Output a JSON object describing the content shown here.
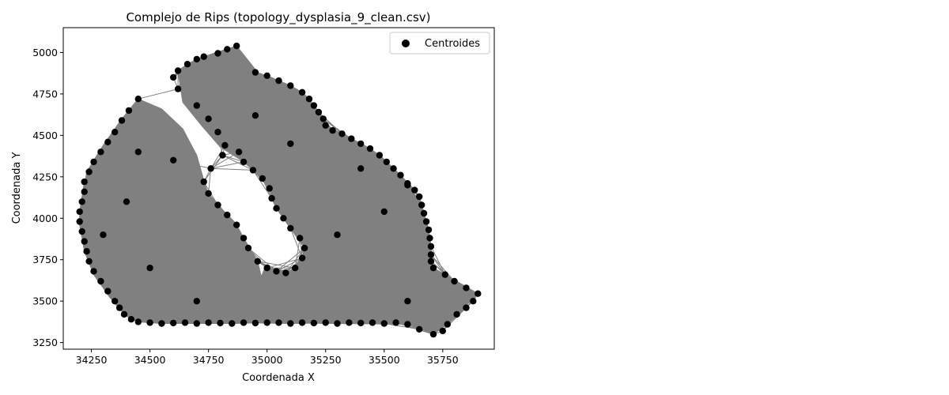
{
  "chart_data": {
    "type": "scatter",
    "title": "Complejo de Rips (topology_dysplasia_9_clean.csv)",
    "xlabel": "Coordenada X",
    "ylabel": "Coordenada Y",
    "xlim": [
      34130,
      35970
    ],
    "ylim": [
      3210,
      5150
    ],
    "xticks": [
      34250,
      34500,
      34750,
      35000,
      35250,
      35500,
      35750
    ],
    "yticks": [
      3250,
      3500,
      3750,
      4000,
      4250,
      4500,
      4750,
      5000
    ],
    "grid": false,
    "legend": {
      "position": "top-right",
      "entries": [
        "Centroides"
      ]
    },
    "series": [
      {
        "name": "Centroides",
        "marker_color": "#000000",
        "edge_color": "#808080",
        "points": [
          [
            34870,
            5040
          ],
          [
            34830,
            5020
          ],
          [
            34790,
            4995
          ],
          [
            34730,
            4975
          ],
          [
            34700,
            4960
          ],
          [
            34660,
            4930
          ],
          [
            34620,
            4890
          ],
          [
            34600,
            4850
          ],
          [
            34950,
            4880
          ],
          [
            35000,
            4860
          ],
          [
            35050,
            4830
          ],
          [
            35100,
            4800
          ],
          [
            35150,
            4760
          ],
          [
            35180,
            4720
          ],
          [
            35200,
            4680
          ],
          [
            35220,
            4640
          ],
          [
            35240,
            4600
          ],
          [
            35250,
            4560
          ],
          [
            35280,
            4530
          ],
          [
            35320,
            4510
          ],
          [
            35360,
            4480
          ],
          [
            35400,
            4450
          ],
          [
            35440,
            4420
          ],
          [
            35480,
            4380
          ],
          [
            35510,
            4340
          ],
          [
            35540,
            4300
          ],
          [
            35570,
            4260
          ],
          [
            35600,
            4210
          ],
          [
            35630,
            4170
          ],
          [
            35650,
            4130
          ],
          [
            35660,
            4080
          ],
          [
            35670,
            4030
          ],
          [
            35680,
            3980
          ],
          [
            35690,
            3930
          ],
          [
            35695,
            3880
          ],
          [
            35700,
            3830
          ],
          [
            35700,
            3780
          ],
          [
            35700,
            3740
          ],
          [
            35710,
            3700
          ],
          [
            35760,
            3660
          ],
          [
            35800,
            3620
          ],
          [
            35850,
            3580
          ],
          [
            35900,
            3545
          ],
          [
            35880,
            3500
          ],
          [
            35850,
            3460
          ],
          [
            35810,
            3420
          ],
          [
            35770,
            3360
          ],
          [
            35750,
            3320
          ],
          [
            35710,
            3300
          ],
          [
            35650,
            3330
          ],
          [
            35600,
            3360
          ],
          [
            35550,
            3370
          ],
          [
            35500,
            3365
          ],
          [
            35450,
            3370
          ],
          [
            35400,
            3368
          ],
          [
            35350,
            3370
          ],
          [
            35300,
            3365
          ],
          [
            35250,
            3370
          ],
          [
            35200,
            3368
          ],
          [
            35150,
            3370
          ],
          [
            35100,
            3365
          ],
          [
            35050,
            3370
          ],
          [
            35000,
            3370
          ],
          [
            34950,
            3368
          ],
          [
            34900,
            3370
          ],
          [
            34850,
            3365
          ],
          [
            34800,
            3368
          ],
          [
            34750,
            3370
          ],
          [
            34700,
            3365
          ],
          [
            34650,
            3370
          ],
          [
            34600,
            3368
          ],
          [
            34550,
            3365
          ],
          [
            34500,
            3370
          ],
          [
            34450,
            3375
          ],
          [
            34420,
            3390
          ],
          [
            34390,
            3420
          ],
          [
            34370,
            3460
          ],
          [
            34350,
            3500
          ],
          [
            34320,
            3560
          ],
          [
            34290,
            3620
          ],
          [
            34260,
            3680
          ],
          [
            34240,
            3740
          ],
          [
            34230,
            3800
          ],
          [
            34220,
            3860
          ],
          [
            34210,
            3920
          ],
          [
            34200,
            3980
          ],
          [
            34200,
            4040
          ],
          [
            34210,
            4100
          ],
          [
            34220,
            4160
          ],
          [
            34220,
            4220
          ],
          [
            34240,
            4280
          ],
          [
            34260,
            4340
          ],
          [
            34290,
            4400
          ],
          [
            34320,
            4460
          ],
          [
            34350,
            4520
          ],
          [
            34380,
            4590
          ],
          [
            34410,
            4650
          ],
          [
            34450,
            4720
          ],
          [
            34620,
            4780
          ],
          [
            34700,
            4680
          ],
          [
            34750,
            4600
          ],
          [
            34790,
            4520
          ],
          [
            34820,
            4440
          ],
          [
            34810,
            4380
          ],
          [
            34760,
            4300
          ],
          [
            34730,
            4220
          ],
          [
            34750,
            4150
          ],
          [
            34790,
            4080
          ],
          [
            34830,
            4020
          ],
          [
            34870,
            3960
          ],
          [
            34900,
            3880
          ],
          [
            34920,
            3820
          ],
          [
            34960,
            3740
          ],
          [
            35000,
            3700
          ],
          [
            35040,
            3680
          ],
          [
            35080,
            3670
          ],
          [
            35120,
            3700
          ],
          [
            35150,
            3760
          ],
          [
            35160,
            3820
          ],
          [
            35140,
            3880
          ],
          [
            35100,
            3940
          ],
          [
            35070,
            4000
          ],
          [
            35040,
            4060
          ],
          [
            35020,
            4120
          ],
          [
            35010,
            4180
          ],
          [
            34980,
            4240
          ],
          [
            34940,
            4290
          ],
          [
            34900,
            4340
          ],
          [
            34880,
            4400
          ],
          [
            35500,
            4040
          ],
          [
            35600,
            4200
          ],
          [
            35400,
            4300
          ],
          [
            35100,
            4450
          ],
          [
            34950,
            4620
          ],
          [
            34600,
            4350
          ],
          [
            34400,
            4100
          ],
          [
            34500,
            3700
          ],
          [
            34700,
            3500
          ],
          [
            35300,
            3900
          ],
          [
            35600,
            3500
          ],
          [
            34450,
            4400
          ],
          [
            34300,
            3900
          ]
        ]
      }
    ]
  }
}
